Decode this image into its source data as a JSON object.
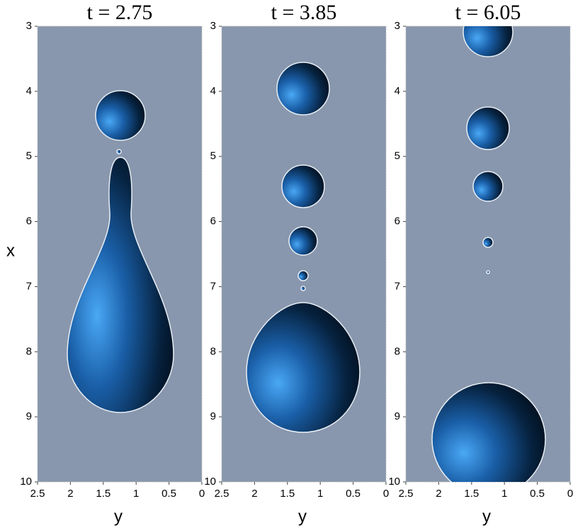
{
  "chart_data": [
    {
      "type": "image",
      "title": "t = 2.75",
      "xlabel": "y",
      "ylabel": "x",
      "xlim": [
        2.5,
        0
      ],
      "ylim": [
        3,
        10
      ],
      "xticks": [
        2.5,
        2,
        1.5,
        1,
        0.5,
        0
      ],
      "yticks": [
        3,
        4,
        5,
        6,
        7,
        8,
        9,
        10
      ]
    },
    {
      "type": "image",
      "title": "t = 3.85",
      "xlabel": "y",
      "xlim": [
        2.5,
        0
      ],
      "ylim": [
        3,
        10
      ],
      "xticks": [
        2.5,
        2,
        1.5,
        1,
        0.5,
        0
      ],
      "yticks": [
        3,
        4,
        5,
        6,
        7,
        8,
        9,
        10
      ]
    },
    {
      "type": "image",
      "title": "t = 6.05",
      "xlabel": "y",
      "xlim": [
        2.5,
        0
      ],
      "ylim": [
        3,
        10
      ],
      "xticks": [
        2.5,
        2,
        1.5,
        1,
        0.5,
        0
      ],
      "yticks": [
        3,
        4,
        5,
        6,
        7,
        8,
        9,
        10
      ]
    }
  ]
}
